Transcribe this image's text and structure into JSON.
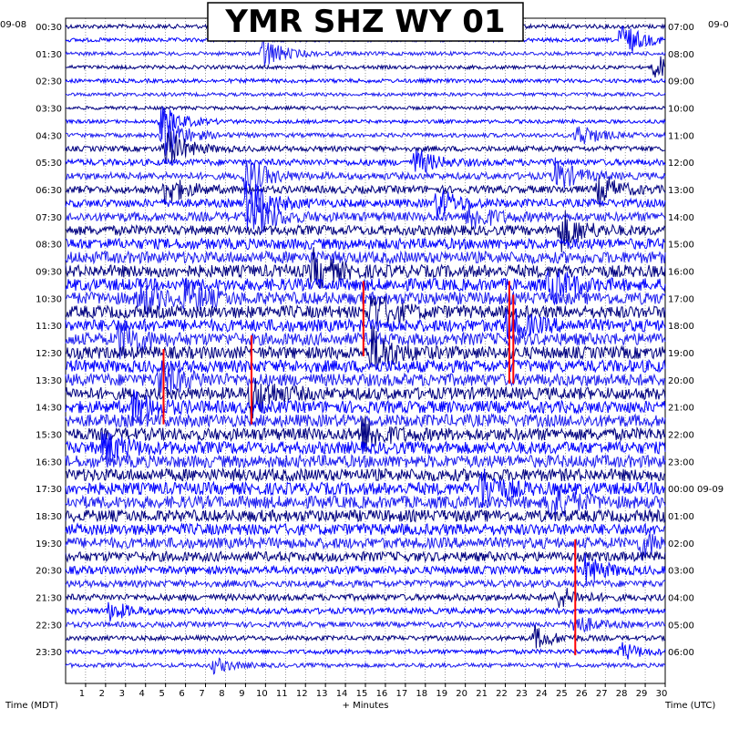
{
  "chart_data": {
    "type": "helicorder",
    "title": "YMR SHZ WY 01",
    "xlabel": "+ Minutes",
    "left_axis_label": "Time (MDT)",
    "right_axis_label": "Time (UTC)",
    "left_date": "09-08",
    "right_date_top": "09-0",
    "right_date_mid": "09-09",
    "x_ticks": [
      "1",
      "2",
      "3",
      "4",
      "5",
      "6",
      "7",
      "8",
      "9",
      "10",
      "11",
      "12",
      "13",
      "14",
      "15",
      "16",
      "17",
      "18",
      "19",
      "20",
      "21",
      "22",
      "23",
      "24",
      "25",
      "26",
      "27",
      "28",
      "29",
      "30"
    ],
    "xlim": [
      0,
      30
    ],
    "left_tick_labels": [
      "00:30",
      "01:30",
      "02:30",
      "03:30",
      "04:30",
      "05:30",
      "06:30",
      "07:30",
      "08:30",
      "09:30",
      "10:30",
      "11:30",
      "12:30",
      "13:30",
      "14:30",
      "15:30",
      "16:30",
      "17:30",
      "18:30",
      "19:30",
      "20:30",
      "21:30",
      "22:30",
      "23:30"
    ],
    "right_tick_labels": [
      "07:00",
      "08:00",
      "09:00",
      "10:00",
      "11:00",
      "12:00",
      "13:00",
      "14:00",
      "15:00",
      "16:00",
      "17:00",
      "18:00",
      "19:00",
      "20:00",
      "21:00",
      "22:00",
      "23:00",
      "00:00",
      "01:00",
      "02:00",
      "03:00",
      "04:00",
      "05:00",
      "06:00"
    ],
    "rows_per_hour": 2,
    "row_count": 48,
    "trace_colors": [
      "#000080",
      "#0000ff",
      "#1e1ef0"
    ],
    "pick_color": "#ff0000",
    "row_activity": [
      0.25,
      0.22,
      0.2,
      0.2,
      0.22,
      0.18,
      0.18,
      0.2,
      0.25,
      0.35,
      0.45,
      0.5,
      0.55,
      0.6,
      0.7,
      0.75,
      0.85,
      0.95,
      1.0,
      1.0,
      1.0,
      1.0,
      1.0,
      1.0,
      1.0,
      1.0,
      1.0,
      1.0,
      1.0,
      1.0,
      1.0,
      1.0,
      1.0,
      1.0,
      1.0,
      1.0,
      0.95,
      0.9,
      0.85,
      0.75,
      0.6,
      0.5,
      0.45,
      0.4,
      0.35,
      0.3,
      0.28,
      0.25
    ],
    "events": [
      {
        "row": 2,
        "minute": 9.9,
        "amp": 18
      },
      {
        "row": 1,
        "minute": 27.8,
        "amp": 20
      },
      {
        "row": 3,
        "minute": 29.5,
        "amp": 14
      },
      {
        "row": 7,
        "minute": 4.8,
        "amp": 18
      },
      {
        "row": 8,
        "minute": 4.9,
        "amp": 26
      },
      {
        "row": 9,
        "minute": 5.0,
        "amp": 24
      },
      {
        "row": 8,
        "minute": 25.6,
        "amp": 14
      },
      {
        "row": 10,
        "minute": 17.5,
        "amp": 14
      },
      {
        "row": 11,
        "minute": 9.0,
        "amp": 22
      },
      {
        "row": 12,
        "minute": 5.0,
        "amp": 16
      },
      {
        "row": 13,
        "minute": 9.1,
        "amp": 28
      },
      {
        "row": 11,
        "minute": 24.5,
        "amp": 18
      },
      {
        "row": 12,
        "minute": 26.7,
        "amp": 16
      },
      {
        "row": 13,
        "minute": 18.6,
        "amp": 16
      },
      {
        "row": 14,
        "minute": 9.4,
        "amp": 24
      },
      {
        "row": 14,
        "minute": 20.2,
        "amp": 16
      },
      {
        "row": 15,
        "minute": 24.8,
        "amp": 22
      },
      {
        "row": 18,
        "minute": 12.4,
        "amp": 20
      },
      {
        "row": 19,
        "minute": 24.2,
        "amp": 20
      },
      {
        "row": 20,
        "minute": 3.7,
        "amp": 18
      },
      {
        "row": 20,
        "minute": 6.0,
        "amp": 16
      },
      {
        "row": 21,
        "minute": 15.3,
        "amp": 22
      },
      {
        "row": 22,
        "minute": 22.1,
        "amp": 20
      },
      {
        "row": 23,
        "minute": 2.7,
        "amp": 22
      },
      {
        "row": 24,
        "minute": 15.3,
        "amp": 26
      },
      {
        "row": 26,
        "minute": 4.7,
        "amp": 22
      },
      {
        "row": 27,
        "minute": 9.3,
        "amp": 24
      },
      {
        "row": 28,
        "minute": 3.4,
        "amp": 18
      },
      {
        "row": 30,
        "minute": 14.8,
        "amp": 20
      },
      {
        "row": 31,
        "minute": 1.9,
        "amp": 18
      },
      {
        "row": 34,
        "minute": 20.8,
        "amp": 22
      },
      {
        "row": 35,
        "minute": 24.2,
        "amp": 22
      },
      {
        "row": 38,
        "minute": 28.8,
        "amp": 14
      },
      {
        "row": 40,
        "minute": 26.0,
        "amp": 14
      },
      {
        "row": 42,
        "minute": 24.6,
        "amp": 12
      },
      {
        "row": 43,
        "minute": 2.2,
        "amp": 10
      },
      {
        "row": 44,
        "minute": 25.4,
        "amp": 12
      },
      {
        "row": 45,
        "minute": 23.5,
        "amp": 12
      },
      {
        "row": 46,
        "minute": 27.8,
        "amp": 10
      },
      {
        "row": 47,
        "minute": 7.4,
        "amp": 8
      }
    ],
    "picks": [
      {
        "minute": 14.9,
        "row_start": 19,
        "row_end": 24
      },
      {
        "minute": 22.2,
        "row_start": 19,
        "row_end": 26
      },
      {
        "minute": 22.4,
        "row_start": 20,
        "row_end": 26
      },
      {
        "minute": 9.3,
        "row_start": 23,
        "row_end": 29
      },
      {
        "minute": 4.9,
        "row_start": 24,
        "row_end": 29
      },
      {
        "minute": 25.5,
        "row_start": 38,
        "row_end": 46
      }
    ]
  }
}
